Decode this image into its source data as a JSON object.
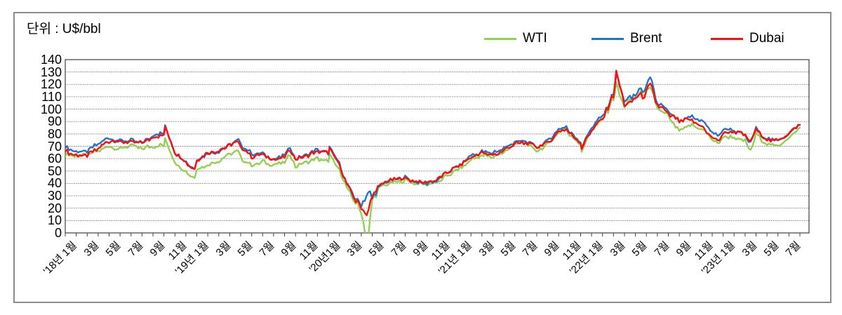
{
  "figure": {
    "unit_label": "단위 : U$/bbl"
  },
  "legend": [
    {
      "label": "WTI",
      "color": "#92d050"
    },
    {
      "label": "Brent",
      "color": "#2273c9"
    },
    {
      "label": "Dubai",
      "color": "#ff0e0e"
    }
  ],
  "chart_data": {
    "type": "line",
    "title": "",
    "unit": "U$/bbl",
    "ylabel": "단위 : U$/bbl",
    "ylim": [
      0,
      140
    ],
    "y_tick_step": 10,
    "grid": "horizontal-dotted",
    "legend_position": "top-right",
    "y_ticks": [
      "140",
      "130",
      "120",
      "110",
      "100",
      "90",
      "80",
      "70",
      "60",
      "50",
      "40",
      "30",
      "20",
      "10",
      "0"
    ],
    "x_label_every_n_months": 2,
    "x_labels": [
      "'18년 1월",
      "3월",
      "5월",
      "7월",
      "9월",
      "11월",
      "'19년 1월",
      "3월",
      "5월",
      "7월",
      "9월",
      "11월",
      "'20년1월",
      "3월",
      "5월",
      "7월",
      "9월",
      "11월",
      "'21년 1월",
      "3월",
      "5월",
      "7월",
      "9월",
      "11월",
      "'22년 1월",
      "3월",
      "5월",
      "7월",
      "9월",
      "11월",
      "'23년 1월",
      "3월",
      "5월",
      "7월"
    ],
    "series": [
      {
        "name": "WTI",
        "color": "#92d050",
        "monthly": [
          63.7,
          62.2,
          62.7,
          66.3,
          70.0,
          67.9,
          70.6,
          68.1,
          70.2,
          70.8,
          57.0,
          49.5,
          51.6,
          55.0,
          58.2,
          63.9,
          60.8,
          54.7,
          57.4,
          54.8,
          56.9,
          54.0,
          57.0,
          59.9,
          57.5,
          50.5,
          30.5,
          18.5,
          28.6,
          38.3,
          40.8,
          42.4,
          39.6,
          39.4,
          41.0,
          47.0,
          52.0,
          59.1,
          62.3,
          61.7,
          65.2,
          71.4,
          72.5,
          66.0,
          71.6,
          81.5,
          79.2,
          71.7,
          83.2,
          91.6,
          108.5,
          101.8,
          109.5,
          114.8,
          101.6,
          93.7,
          82.0,
          87.0,
          84.4,
          76.4,
          78.1,
          76.8,
          74.0,
          79.4,
          71.6,
          70.3,
          77.0,
          84.5
        ],
        "spikes": [
          [
            9.1,
            76.4
          ],
          [
            11.8,
            44.5
          ],
          [
            15.8,
            65.5
          ],
          [
            20.5,
            62.5
          ],
          [
            24.1,
            63.0
          ],
          [
            27.55,
            -12.0
          ],
          [
            45.7,
            84.5
          ],
          [
            47.1,
            66.0
          ],
          [
            50.25,
            119.0
          ],
          [
            53.35,
            116.0
          ],
          [
            59.5,
            71.0
          ],
          [
            62.5,
            66.5
          ]
        ]
      },
      {
        "name": "Brent",
        "color": "#2273c9",
        "monthly": [
          69.1,
          65.3,
          66.0,
          72.1,
          76.9,
          74.4,
          74.2,
          72.5,
          78.9,
          81.0,
          64.8,
          57.4,
          59.4,
          64.0,
          66.1,
          71.2,
          71.3,
          64.2,
          63.9,
          59.0,
          62.8,
          59.7,
          63.2,
          67.3,
          63.7,
          55.7,
          32.0,
          23.0,
          29.4,
          40.3,
          43.2,
          44.7,
          40.9,
          40.2,
          42.7,
          50.2,
          54.8,
          62.3,
          65.4,
          64.8,
          68.5,
          73.2,
          74.3,
          69.0,
          74.5,
          83.7,
          81.1,
          74.2,
          85.6,
          94.1,
          112.0,
          105.9,
          112.0,
          117.5,
          105.1,
          97.7,
          89.8,
          93.3,
          91.4,
          81.5,
          83.9,
          82.8,
          78.4,
          84.1,
          75.7,
          74.9,
          80.1,
          87.5
        ],
        "spikes": [
          [
            9.1,
            86.2
          ],
          [
            11.8,
            51.5
          ],
          [
            15.8,
            74.8
          ],
          [
            20.5,
            69.0
          ],
          [
            24.1,
            69.5
          ],
          [
            27.8,
            33.0
          ],
          [
            45.7,
            86.5
          ],
          [
            47.1,
            69.0
          ],
          [
            50.25,
            127.5
          ],
          [
            53.35,
            124.0
          ],
          [
            59.5,
            77.5
          ],
          [
            62.5,
            72.5
          ]
        ]
      },
      {
        "name": "Dubai",
        "color": "#ff0e0e",
        "monthly": [
          66.2,
          62.7,
          62.7,
          68.3,
          74.4,
          73.6,
          73.1,
          72.5,
          77.2,
          79.4,
          65.6,
          57.3,
          59.1,
          64.6,
          66.9,
          70.9,
          69.4,
          61.8,
          63.3,
          59.0,
          61.1,
          59.4,
          62.1,
          65.7,
          64.3,
          54.5,
          33.7,
          20.4,
          30.5,
          40.8,
          43.4,
          44.0,
          41.5,
          40.7,
          43.4,
          49.9,
          54.8,
          60.9,
          64.4,
          62.9,
          66.3,
          71.9,
          72.9,
          69.6,
          72.6,
          81.6,
          80.3,
          73.2,
          83.5,
          92.4,
          110.5,
          102.7,
          108.2,
          113.3,
          103.4,
          96.3,
          90.6,
          91.2,
          86.3,
          77.1,
          80.4,
          82.1,
          78.5,
          83.6,
          74.7,
          74.7,
          80.5,
          88.0
        ],
        "spikes": [
          [
            9.15,
            84.5
          ],
          [
            11.8,
            51.0
          ],
          [
            15.8,
            73.5
          ],
          [
            20.5,
            67.5
          ],
          [
            24.1,
            68.5
          ],
          [
            27.5,
            14.0
          ],
          [
            45.7,
            84.0
          ],
          [
            47.1,
            68.5
          ],
          [
            50.25,
            131.0
          ],
          [
            53.35,
            119.0
          ],
          [
            59.5,
            74.0
          ],
          [
            62.5,
            73.5
          ]
        ]
      }
    ]
  }
}
